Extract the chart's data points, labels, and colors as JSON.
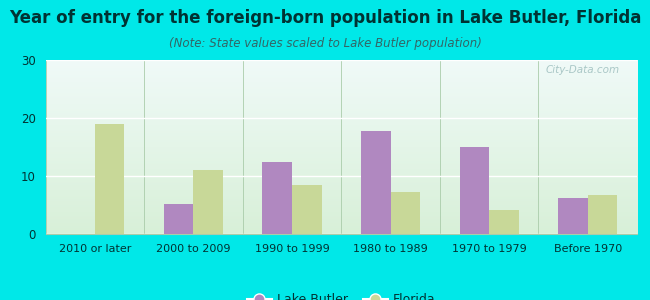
{
  "title": "Year of entry for the foreign-born population in Lake Butler, Florida",
  "subtitle": "(Note: State values scaled to Lake Butler population)",
  "categories": [
    "2010 or later",
    "2000 to 2009",
    "1990 to 1999",
    "1980 to 1989",
    "1970 to 1979",
    "Before 1970"
  ],
  "lake_butler": [
    0,
    5.2,
    12.5,
    17.8,
    15.0,
    6.2
  ],
  "florida": [
    19.0,
    11.0,
    8.5,
    7.3,
    4.2,
    6.7
  ],
  "lake_butler_color": "#b088c0",
  "florida_color": "#c8d898",
  "ylim": [
    0,
    30
  ],
  "yticks": [
    0,
    10,
    20,
    30
  ],
  "background_color": "#00e8e8",
  "plot_bg_top": "#f0faf8",
  "plot_bg_bottom": "#d8f0d8",
  "title_fontsize": 12,
  "subtitle_fontsize": 8.5,
  "bar_width": 0.3,
  "legend_lake_butler": "Lake Butler",
  "legend_florida": "Florida",
  "title_color": "#003333",
  "subtitle_color": "#336666",
  "tick_color": "#003333",
  "watermark_text": "City-Data.com"
}
